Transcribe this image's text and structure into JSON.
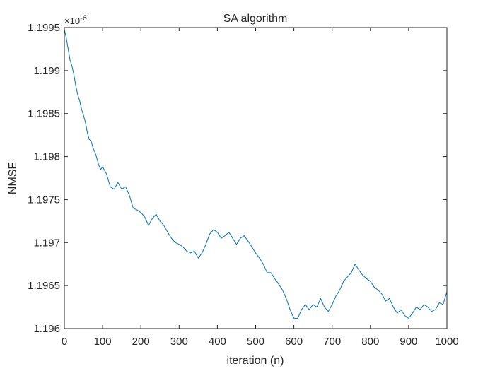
{
  "chart_data": {
    "type": "line",
    "title": "SA algorithm",
    "xlabel": "iteration (n)",
    "ylabel": "NMSE",
    "y_exponent_label": "×10",
    "y_exponent_power": "-6",
    "xlim": [
      0,
      1000
    ],
    "ylim": [
      1.196,
      1.1995
    ],
    "x_ticks": [
      0,
      100,
      200,
      300,
      400,
      500,
      600,
      700,
      800,
      900,
      1000
    ],
    "x_tick_labels": [
      "0",
      "100",
      "200",
      "300",
      "400",
      "500",
      "600",
      "700",
      "800",
      "900",
      "1000"
    ],
    "y_ticks": [
      1.196,
      1.1965,
      1.197,
      1.1975,
      1.198,
      1.1985,
      1.199,
      1.1995
    ],
    "y_tick_labels": [
      "1.196",
      "1.1965",
      "1.197",
      "1.1975",
      "1.198",
      "1.1985",
      "1.199",
      "1.1995"
    ],
    "grid": false,
    "line_color": "#0072BD",
    "series": [
      {
        "x": [
          0,
          5,
          10,
          15,
          20,
          25,
          30,
          35,
          40,
          45,
          50,
          55,
          60,
          65,
          70,
          75,
          80,
          85,
          90,
          95,
          100,
          110,
          120,
          130,
          140,
          150,
          160,
          170,
          180,
          190,
          200,
          210,
          220,
          230,
          240,
          250,
          260,
          270,
          280,
          290,
          300,
          310,
          320,
          330,
          340,
          350,
          360,
          370,
          380,
          390,
          400,
          410,
          420,
          430,
          440,
          450,
          460,
          470,
          480,
          490,
          500,
          510,
          520,
          530,
          540,
          550,
          560,
          570,
          580,
          590,
          600,
          610,
          620,
          630,
          640,
          650,
          660,
          670,
          680,
          690,
          700,
          710,
          720,
          730,
          740,
          750,
          760,
          770,
          780,
          790,
          800,
          810,
          820,
          830,
          840,
          850,
          860,
          870,
          880,
          890,
          900,
          910,
          920,
          930,
          940,
          950,
          960,
          970,
          980,
          990,
          1000
        ],
        "y": [
          1.19948,
          1.19938,
          1.19925,
          1.19912,
          1.19905,
          1.19895,
          1.19882,
          1.19872,
          1.19865,
          1.19855,
          1.19848,
          1.1984,
          1.19828,
          1.1982,
          1.19818,
          1.1981,
          1.19805,
          1.19798,
          1.1979,
          1.19785,
          1.19788,
          1.1978,
          1.19765,
          1.19762,
          1.1977,
          1.19762,
          1.19765,
          1.19755,
          1.1974,
          1.19738,
          1.19735,
          1.1973,
          1.1972,
          1.19728,
          1.19733,
          1.19725,
          1.1972,
          1.19712,
          1.19705,
          1.197,
          1.19698,
          1.19695,
          1.1969,
          1.19688,
          1.1969,
          1.19682,
          1.19688,
          1.19698,
          1.1971,
          1.19715,
          1.19712,
          1.19705,
          1.19708,
          1.19712,
          1.19705,
          1.19698,
          1.19705,
          1.19708,
          1.19702,
          1.19695,
          1.19688,
          1.19682,
          1.19675,
          1.19665,
          1.19665,
          1.19658,
          1.19652,
          1.19645,
          1.19635,
          1.19622,
          1.19612,
          1.19612,
          1.19622,
          1.19628,
          1.19622,
          1.19628,
          1.19625,
          1.19635,
          1.19625,
          1.1962,
          1.19628,
          1.19638,
          1.19645,
          1.19655,
          1.1966,
          1.19665,
          1.19675,
          1.19668,
          1.19662,
          1.19658,
          1.19655,
          1.19648,
          1.19645,
          1.1964,
          1.19632,
          1.19635,
          1.19625,
          1.19618,
          1.19622,
          1.19615,
          1.19612,
          1.19618,
          1.19625,
          1.19622,
          1.19628,
          1.19625,
          1.1962,
          1.19622,
          1.1963,
          1.19628,
          1.19643
        ]
      }
    ]
  }
}
